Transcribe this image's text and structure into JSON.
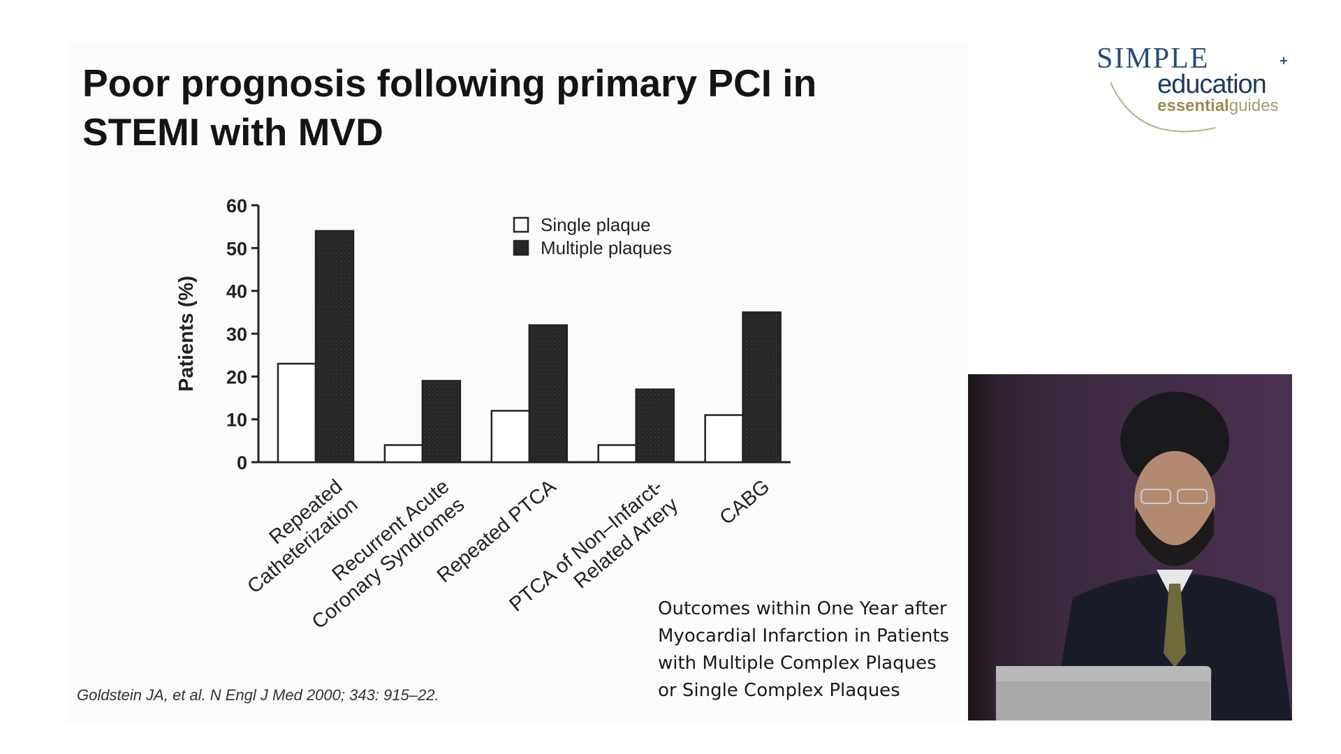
{
  "slide": {
    "title_lines": [
      "Poor prognosis following primary PCI in",
      "STEMI with MVD"
    ],
    "citation": "Goldstein JA, et al. N Engl J Med 2000; 343: 915–22.",
    "caption_lines": [
      "Outcomes within One Year after",
      "Myocardial Infarction in Patients",
      "with Multiple Complex Plaques",
      "or Single Complex Plaques"
    ]
  },
  "logo": {
    "simple": "SIMPLE",
    "education": "education",
    "essential": "essential",
    "guides": "guides"
  },
  "colors": {
    "single_fill": "#ffffff",
    "multiple_fill": "#2a2a2a",
    "axis": "#222222",
    "logo_navy": "#1d3a5e",
    "logo_gold": "#a89a6a"
  },
  "chart_data": {
    "type": "bar",
    "categories": [
      [
        "Repeated",
        "Catheterization"
      ],
      [
        "Recurrent Acute",
        "Coronary Syndromes"
      ],
      [
        "Repeated PTCA"
      ],
      [
        "PTCA of Non–Infarct-",
        "Related Artery"
      ],
      [
        "CABG"
      ]
    ],
    "series": [
      {
        "name": "Single plaque",
        "values": [
          23,
          4,
          12,
          4,
          11
        ]
      },
      {
        "name": "Multiple plaques",
        "values": [
          54,
          19,
          32,
          17,
          35
        ]
      }
    ],
    "ylabel": "Patients (%)",
    "xlabel": "",
    "ylim": [
      0,
      60
    ],
    "yticks": [
      0,
      10,
      20,
      30,
      40,
      50,
      60
    ],
    "legend_position": "top-right",
    "grid": false
  },
  "video": {
    "description_icon": "presenter-video-icon"
  }
}
